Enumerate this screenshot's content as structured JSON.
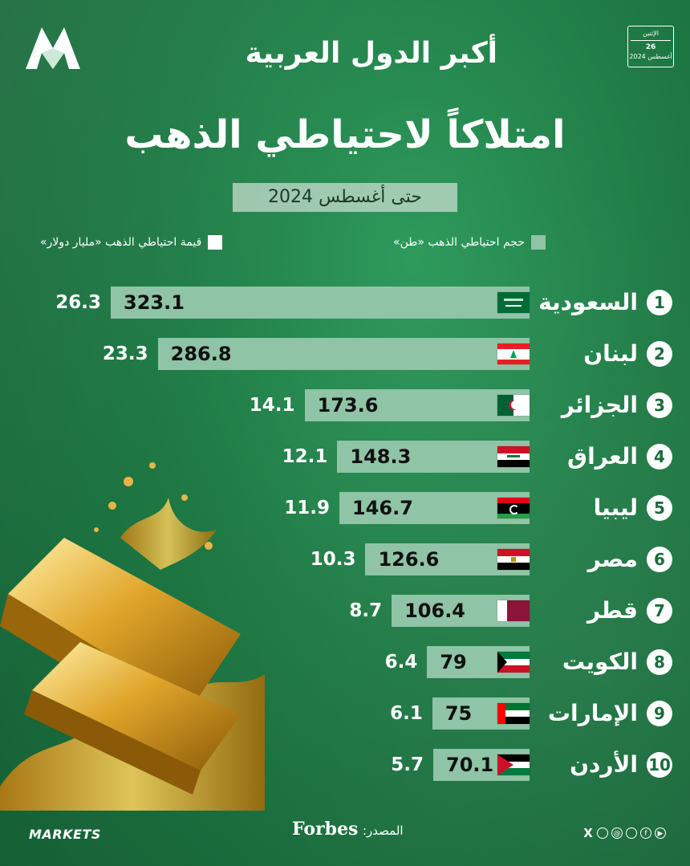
{
  "header": {
    "title_line1": "أكبر الدول العربية",
    "title_line2": "امتلاكاً لاحتياطي الذهب",
    "subtitle": "حتى أغسطس 2024",
    "date": {
      "weekday": "الإثنين",
      "day": "26",
      "month_year": "أغسطس 2024"
    }
  },
  "legend": {
    "tons": "حجم احتياطي الذهب «طن»",
    "value": "قيمة احتياطي الذهب «مليار دولار»"
  },
  "colors": {
    "background": "#1f7a45",
    "bar": "#8fc4a6",
    "value_square": "#ffffff",
    "rank_circle": "#ffffff"
  },
  "chart_data": {
    "type": "bar",
    "orientation": "horizontal",
    "categories": [
      "السعودية",
      "لبنان",
      "الجزائر",
      "العراق",
      "ليبيا",
      "مصر",
      "قطر",
      "الكويت",
      "الإمارات",
      "الأردن"
    ],
    "ranks": [
      "1",
      "2",
      "3",
      "4",
      "5",
      "6",
      "7",
      "8",
      "9",
      "10"
    ],
    "flags": [
      "saudi-flag-icon",
      "lebanon-flag-icon",
      "algeria-flag-icon",
      "iraq-flag-icon",
      "libya-flag-icon",
      "egypt-flag-icon",
      "qatar-flag-icon",
      "kuwait-flag-icon",
      "uae-flag-icon",
      "jordan-flag-icon"
    ],
    "series": [
      {
        "name": "حجم احتياطي الذهب «طن»",
        "values": [
          323.1,
          286.8,
          173.6,
          148.3,
          146.7,
          126.6,
          106.4,
          79,
          75,
          70.1
        ]
      },
      {
        "name": "قيمة احتياطي الذهب «مليار دولار»",
        "values": [
          26.3,
          23.3,
          14.1,
          12.1,
          11.9,
          10.3,
          8.7,
          6.4,
          6.1,
          5.7
        ]
      }
    ]
  },
  "footer": {
    "brand": "MARKETS",
    "source_label": "المصدر:",
    "source_name": "Forbes",
    "social": [
      "x-icon",
      "instagram-icon",
      "threads-icon",
      "whatsapp-icon",
      "facebook-icon",
      "youtube-icon"
    ]
  }
}
